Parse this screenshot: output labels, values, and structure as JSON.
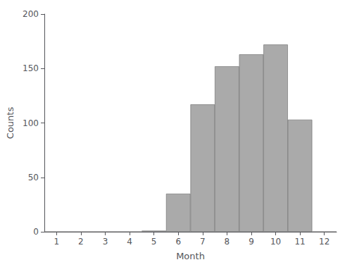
{
  "chart_data": {
    "type": "bar",
    "x": [
      1,
      2,
      3,
      4,
      5,
      6,
      7,
      8,
      9,
      10,
      11,
      12
    ],
    "values": [
      0,
      0,
      0,
      0,
      1,
      35,
      117,
      152,
      163,
      172,
      103,
      0
    ],
    "color": "#aaaaaa",
    "xlabel": "Month",
    "ylabel": "Counts",
    "xlim": [
      0.5,
      12.5
    ],
    "xticks": [
      1,
      2,
      3,
      4,
      5,
      6,
      7,
      8,
      9,
      10,
      11,
      12
    ],
    "ylim": [
      0,
      200
    ],
    "yticks": [
      0,
      50,
      100,
      150,
      200
    ],
    "grid": false
  }
}
